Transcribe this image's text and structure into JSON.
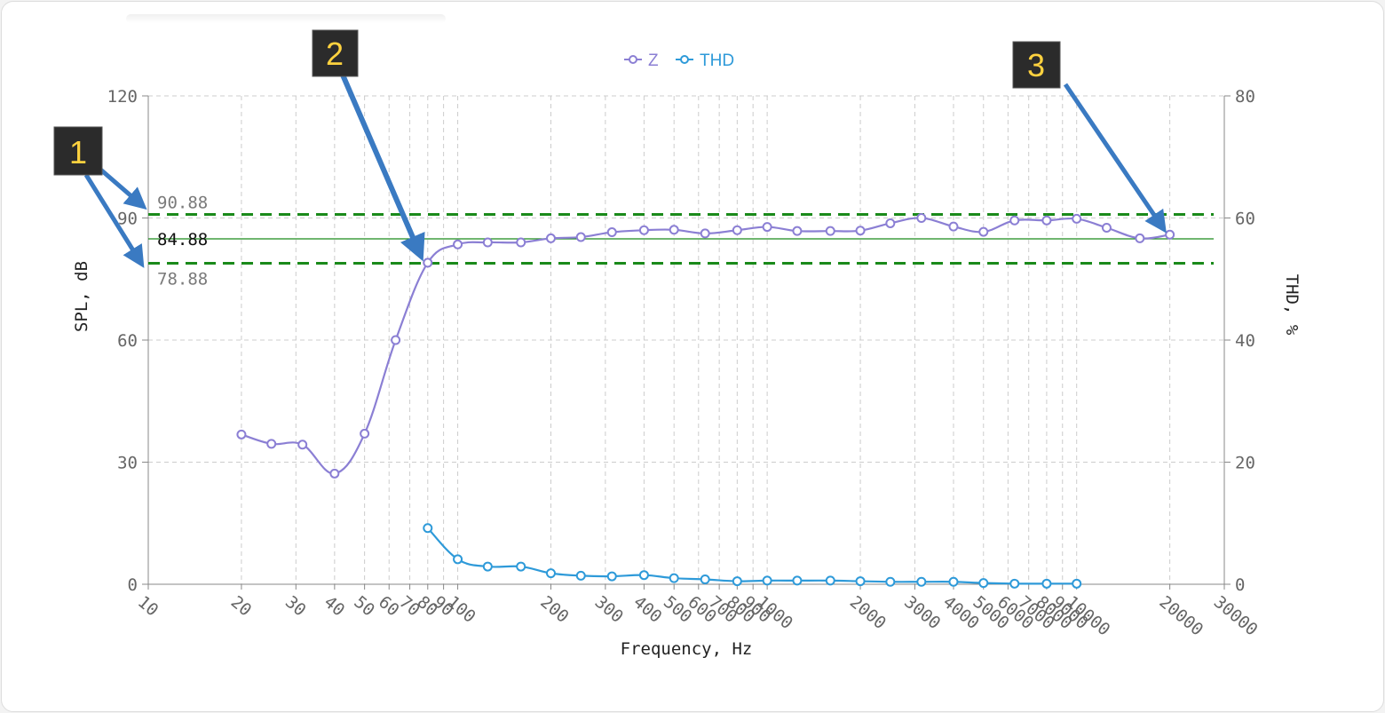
{
  "chart_data": {
    "type": "line",
    "title": "",
    "xlabel": "Frequency, Hz",
    "ylabel": "SPL, dB",
    "y2label": "THD, %",
    "x_scale": "log",
    "xlim": [
      10,
      30000
    ],
    "ylim": [
      0,
      120
    ],
    "y2lim": [
      0,
      80
    ],
    "grid": true,
    "legend_position": "top-center",
    "x_ticks": [
      10,
      20,
      30,
      40,
      50,
      60,
      70,
      80,
      90,
      100,
      200,
      300,
      400,
      500,
      600,
      700,
      800,
      900,
      1000,
      2000,
      3000,
      4000,
      5000,
      6000,
      7000,
      8000,
      9000,
      10000,
      20000,
      30000
    ],
    "x_tick_labels": [
      "10",
      "20",
      "30",
      "40",
      "50",
      "60",
      "70",
      "80",
      "90",
      "100",
      "200",
      "300",
      "400",
      "500",
      "600",
      "700",
      "800",
      "900",
      "1000",
      "2000",
      "3000",
      "4000",
      "5000",
      "6000",
      "7000",
      "8000",
      "9000",
      "10000",
      "20000",
      "30000"
    ],
    "y_ticks": [
      0,
      30,
      60,
      90,
      120
    ],
    "y_tick_labels": [
      "0",
      "30",
      "60",
      "90",
      "120"
    ],
    "y2_ticks": [
      0,
      20,
      40,
      60,
      80
    ],
    "y2_tick_labels": [
      "0",
      "20",
      "40",
      "60",
      "80"
    ],
    "series": [
      {
        "name": "Z",
        "axis": "left",
        "color": "#8b7fd4",
        "x": [
          20,
          25,
          31.5,
          40,
          50,
          63,
          80,
          100,
          125,
          160,
          200,
          250,
          315,
          400,
          500,
          630,
          800,
          1000,
          1250,
          1600,
          2000,
          2500,
          3150,
          4000,
          5000,
          6300,
          8000,
          10000,
          12500,
          16000,
          20000
        ],
        "y": [
          36.8,
          34.5,
          34.3,
          27.2,
          37,
          60,
          79,
          83.5,
          84,
          84,
          85,
          85.3,
          86.5,
          87,
          87.1,
          86.2,
          87,
          87.8,
          86.8,
          86.8,
          86.9,
          88.7,
          90,
          87.9,
          86.6,
          89.4,
          89.4,
          89.8,
          87.6,
          85,
          85.9
        ]
      },
      {
        "name": "THD",
        "axis": "right",
        "color": "#2e9ad9",
        "x": [
          80,
          100,
          125,
          160,
          200,
          250,
          315,
          400,
          500,
          630,
          800,
          1000,
          1250,
          1600,
          2000,
          2500,
          3150,
          4000,
          5000,
          6300,
          8000,
          10000
        ],
        "y": [
          9.2,
          4.1,
          2.9,
          2.9,
          1.8,
          1.4,
          1.3,
          1.5,
          1,
          0.8,
          0.5,
          0.6,
          0.6,
          0.6,
          0.5,
          0.4,
          0.4,
          0.4,
          0.2,
          0.1,
          0.1,
          0.1
        ]
      }
    ],
    "reference_lines": [
      {
        "label": "90.88",
        "value": 90.88,
        "style": "dashed",
        "color": "#1a8a1a",
        "label_color": "#7a7a7a"
      },
      {
        "label": "84.88",
        "value": 84.88,
        "style": "solid",
        "color": "#1a8a1a",
        "label_color": "#111111"
      },
      {
        "label": "78.88",
        "value": 78.88,
        "style": "dashed",
        "color": "#1a8a1a",
        "label_color": "#7a7a7a"
      }
    ],
    "callouts": [
      {
        "label": "1"
      },
      {
        "label": "2"
      },
      {
        "label": "3"
      }
    ]
  }
}
